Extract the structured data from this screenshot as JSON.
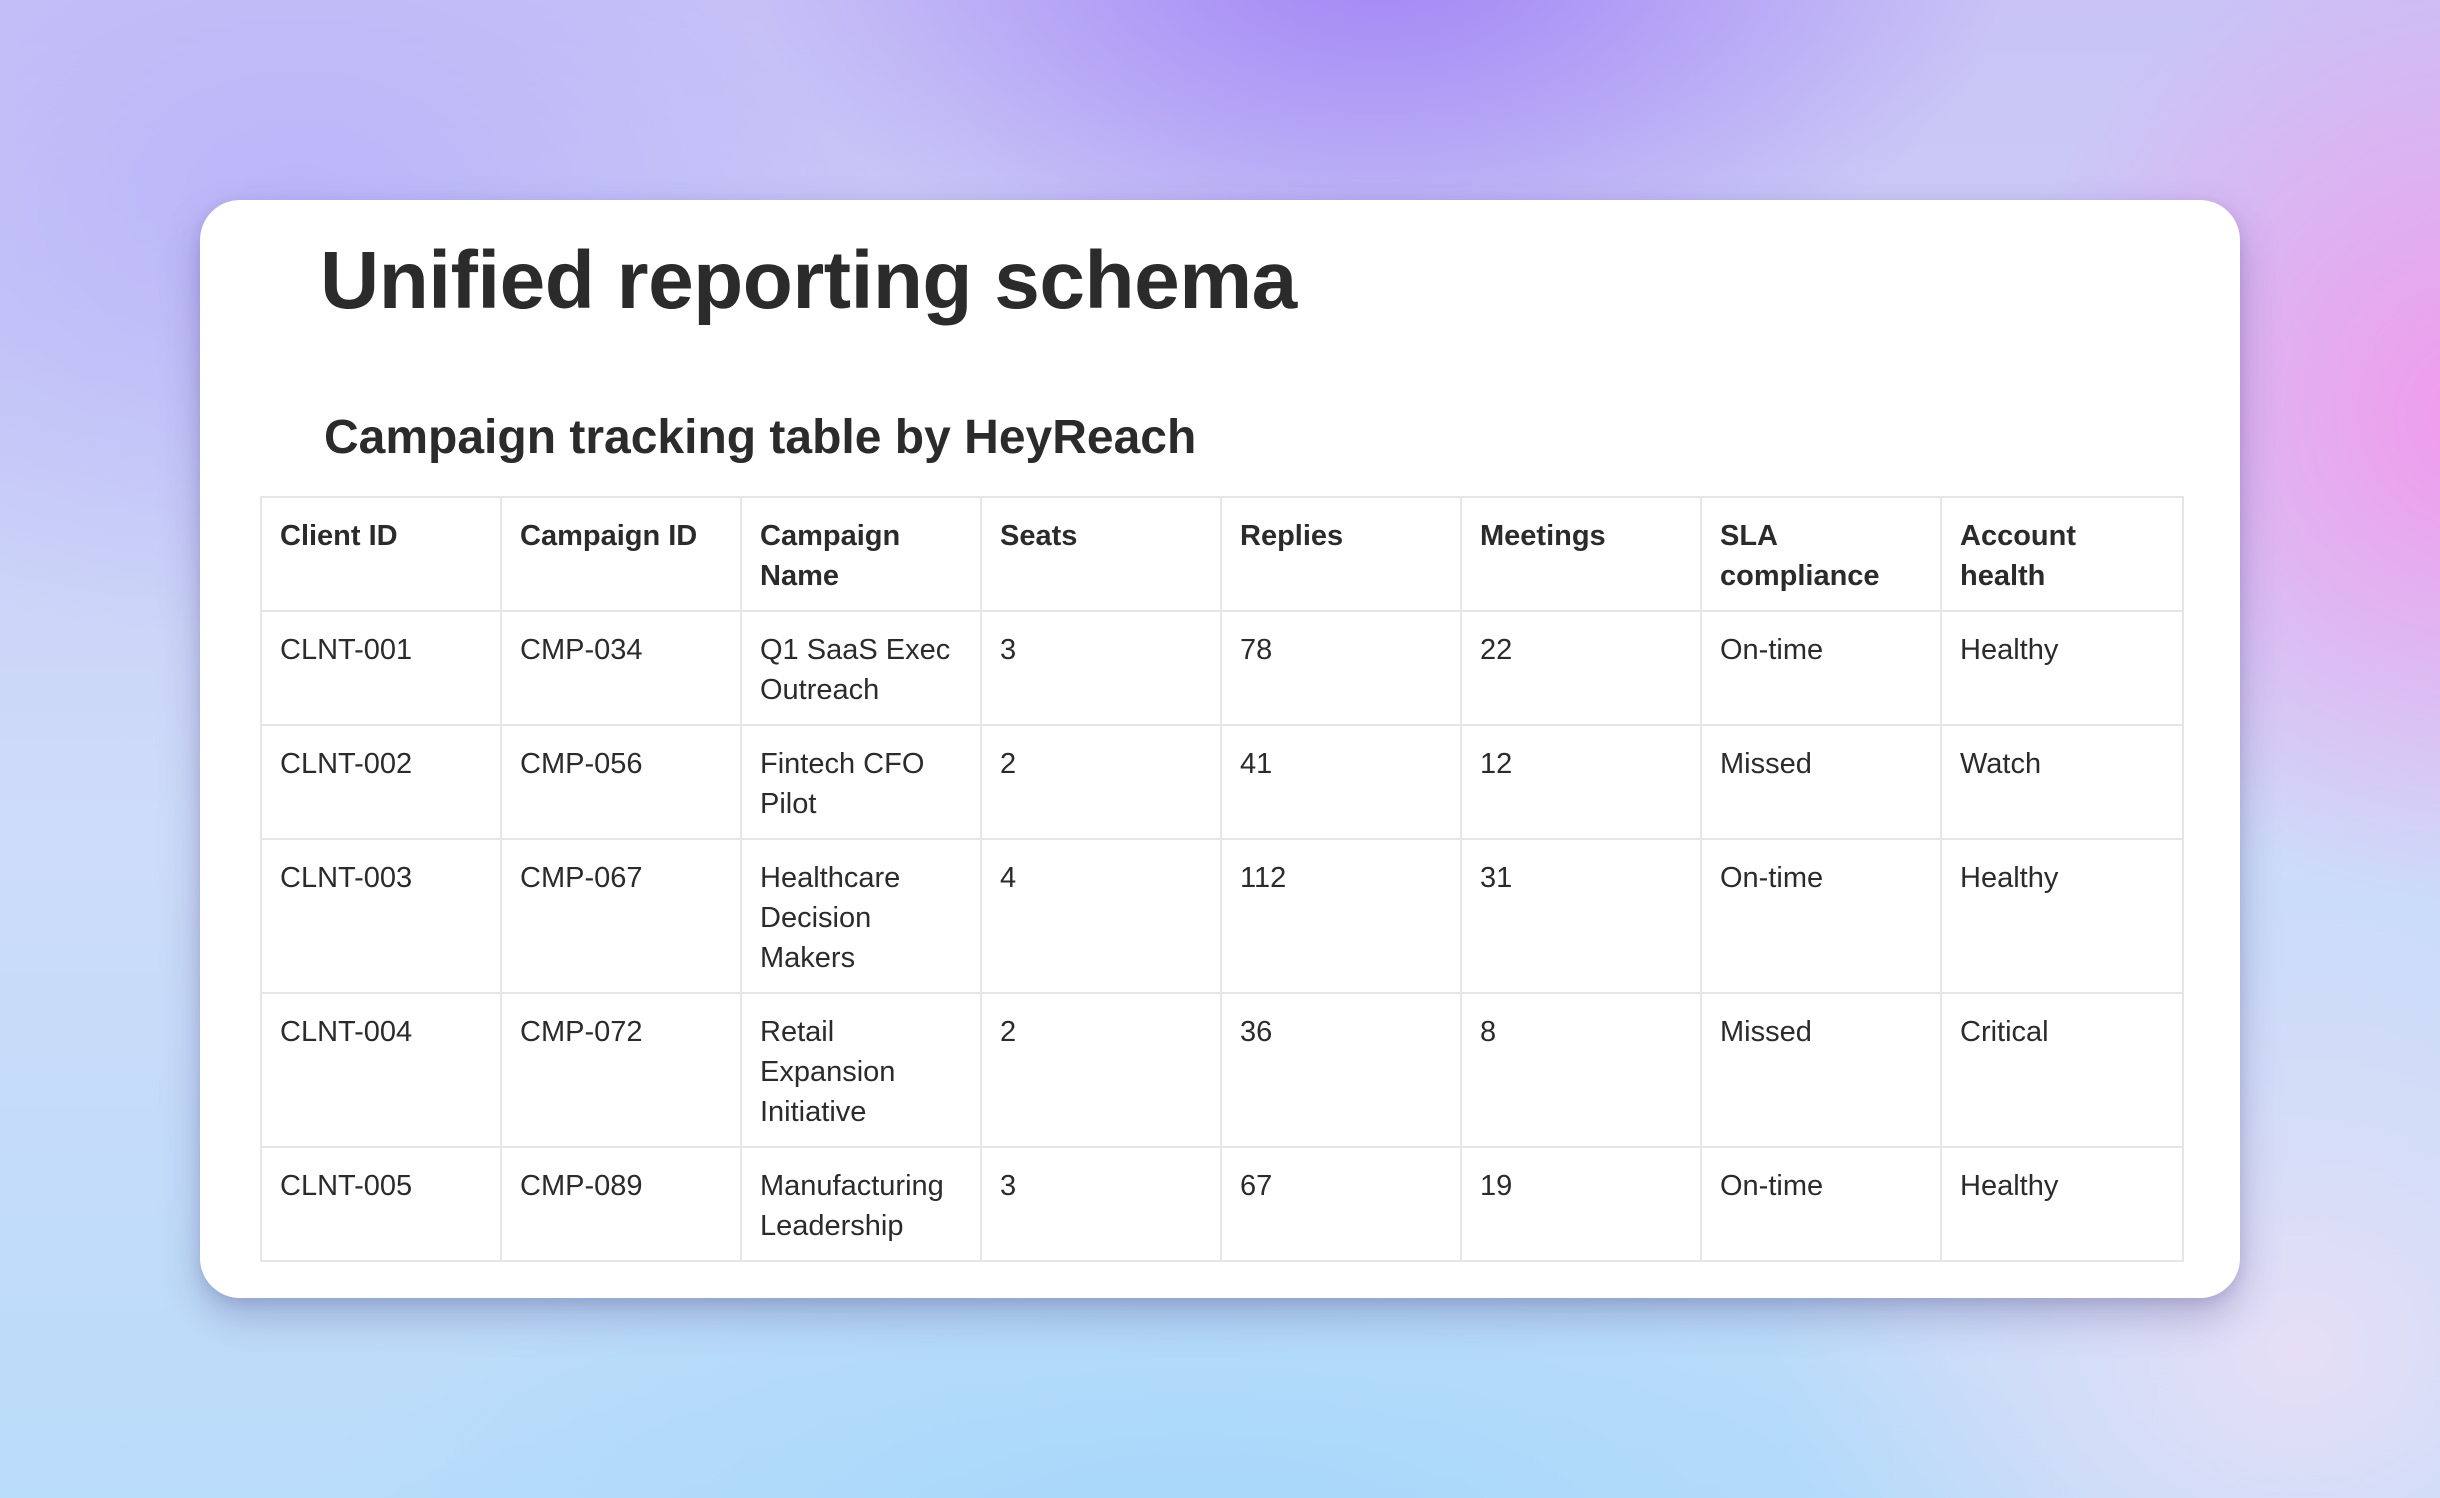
{
  "page": {
    "title": "Unified reporting schema",
    "section_title": "Campaign tracking table by HeyReach"
  },
  "table": {
    "headers": [
      "Client ID",
      "Campaign ID",
      "Campaign Name",
      "Seats",
      "Replies",
      "Meetings",
      "SLA compliance",
      "Account health"
    ],
    "rows": [
      [
        "CLNT-001",
        "CMP-034",
        "Q1 SaaS Exec Outreach",
        "3",
        "78",
        "22",
        "On-time",
        "Healthy"
      ],
      [
        "CLNT-002",
        "CMP-056",
        "Fintech CFO Pilot",
        "2",
        "41",
        "12",
        "Missed",
        "Watch"
      ],
      [
        "CLNT-003",
        "CMP-067",
        "Healthcare Decision Makers",
        "4",
        "112",
        "31",
        "On-time",
        "Healthy"
      ],
      [
        "CLNT-004",
        "CMP-072",
        "Retail Expansion Initiative",
        "2",
        "36",
        "8",
        "Missed",
        "Critical"
      ],
      [
        "CLNT-005",
        "CMP-089",
        "Manufacturing Leadership",
        "3",
        "67",
        "19",
        "On-time",
        "Healthy"
      ]
    ]
  }
}
